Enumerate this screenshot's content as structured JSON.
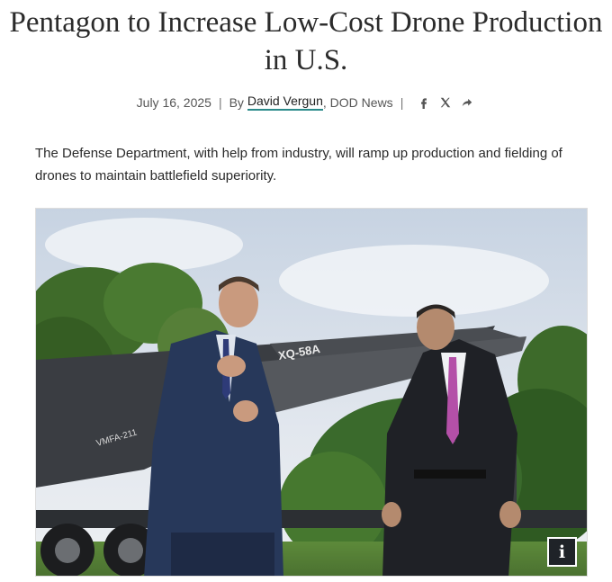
{
  "article": {
    "title_line1": "Pentagon to Increase Low-Cost Drone Production",
    "title_line2": "in U.S.",
    "date": "July 16, 2025",
    "separator": "|",
    "by_label": "By",
    "author": "David Vergun",
    "source": ", DOD News",
    "lede": "The Defense Department, with help from industry, will ramp up production and fielding of drones to maintain battlefield superiority."
  },
  "share_icons": [
    "facebook-icon",
    "x-icon",
    "share-icon"
  ],
  "photo": {
    "drone_marking": "XQ-58A",
    "tail_marking": "VMFA-211"
  },
  "info_button": {
    "label": "i"
  }
}
